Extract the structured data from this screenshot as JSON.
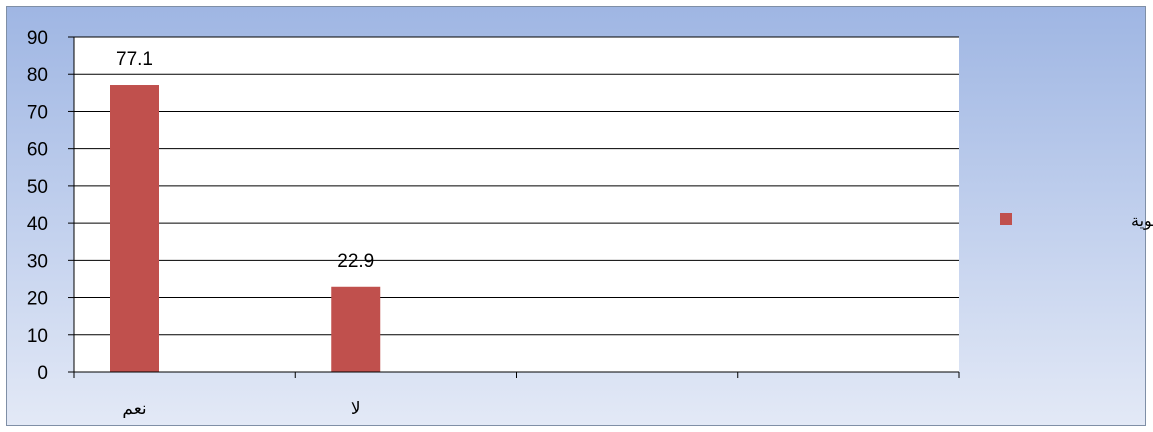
{
  "chart_data": {
    "type": "bar",
    "categories": [
      "نعم",
      "لا",
      "",
      ""
    ],
    "series": [
      {
        "name": "النسبة المئوية",
        "values": [
          77.1,
          22.9,
          null,
          null
        ],
        "color": "#c0504d"
      }
    ],
    "data_labels": [
      "77.1",
      "22.9"
    ],
    "ylim": [
      0,
      90
    ],
    "yticks": [
      0,
      10,
      20,
      30,
      40,
      50,
      60,
      70,
      80,
      90
    ],
    "grid": true,
    "legend_position": "right",
    "colors": {
      "bar": "#c0504d",
      "plot_background": "#ffffff",
      "gridline": "#000000"
    }
  }
}
